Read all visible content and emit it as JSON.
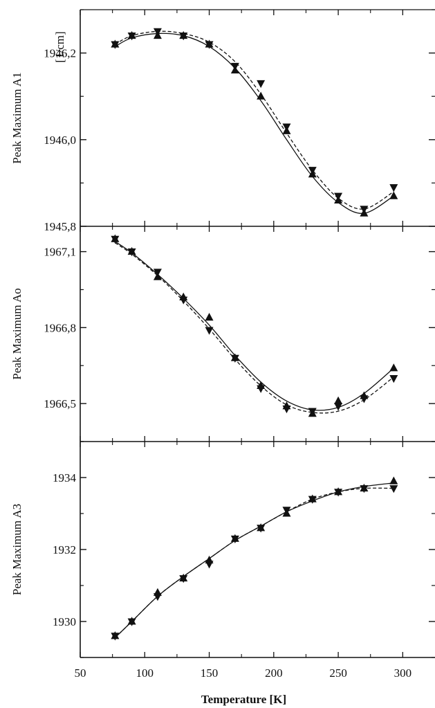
{
  "chart_data": [
    {
      "type": "scatter",
      "ylabel": "Peak Maximum A1",
      "unit_label": "[1/cm]",
      "ylim": [
        1945.8,
        1946.3
      ],
      "yticks": [
        1945.8,
        1946.0,
        1946.2
      ],
      "ytick_labels": [
        "1945,8",
        "1946,0",
        "1946,2"
      ],
      "series": [
        {
          "marker": "up-triangle",
          "line": "solid",
          "x": [
            77,
            90,
            110,
            130,
            150,
            170,
            190,
            210,
            230,
            250,
            270,
            293
          ],
          "y": [
            1946.22,
            1946.24,
            1946.24,
            1946.24,
            1946.22,
            1946.16,
            1946.1,
            1946.02,
            1945.92,
            1945.86,
            1945.83,
            1945.87
          ],
          "fit": [
            1946.215,
            1946.235,
            1946.245,
            1946.24,
            1946.215,
            1946.165,
            1946.09,
            1946.0,
            1945.915,
            1945.855,
            1945.83,
            1945.87
          ]
        },
        {
          "marker": "down-triangle",
          "line": "dashed",
          "x": [
            77,
            90,
            110,
            130,
            150,
            170,
            190,
            210,
            230,
            250,
            270,
            293
          ],
          "y": [
            1946.22,
            1946.24,
            1946.25,
            1946.24,
            1946.22,
            1946.17,
            1946.13,
            1946.03,
            1945.93,
            1945.87,
            1945.84,
            1945.89
          ],
          "fit": [
            1946.22,
            1946.24,
            1946.25,
            1946.245,
            1946.225,
            1946.18,
            1946.105,
            1946.015,
            1945.93,
            1945.865,
            1945.84,
            1945.88
          ]
        }
      ]
    },
    {
      "type": "scatter",
      "ylabel": "Peak Maximum Ao",
      "ylim": [
        1966.35,
        1967.2
      ],
      "yticks": [
        1966.5,
        1966.8,
        1967.1
      ],
      "ytick_labels": [
        "1966,5",
        "1966,8",
        "1967,1"
      ],
      "series": [
        {
          "marker": "up-triangle",
          "line": "solid",
          "x": [
            77,
            90,
            110,
            130,
            150,
            170,
            190,
            210,
            230,
            250,
            270,
            293
          ],
          "y": [
            1967.15,
            1967.1,
            1967.0,
            1966.92,
            1966.84,
            1966.68,
            1966.57,
            1966.49,
            1966.46,
            1966.51,
            1966.53,
            1966.64
          ],
          "fit": [
            1967.14,
            1967.095,
            1967.01,
            1966.915,
            1966.81,
            1966.69,
            1966.585,
            1966.51,
            1966.475,
            1966.485,
            1966.54,
            1966.64
          ]
        },
        {
          "marker": "down-triangle",
          "line": "dashed",
          "x": [
            77,
            90,
            110,
            130,
            150,
            170,
            190,
            210,
            230,
            250,
            270,
            293
          ],
          "y": [
            1967.15,
            1967.1,
            1967.02,
            1966.91,
            1966.79,
            1966.68,
            1966.56,
            1966.48,
            1966.47,
            1966.49,
            1966.52,
            1966.6
          ],
          "fit": [
            1967.135,
            1967.09,
            1967.005,
            1966.905,
            1966.795,
            1966.675,
            1966.57,
            1966.495,
            1966.465,
            1966.47,
            1966.515,
            1966.605
          ]
        }
      ]
    },
    {
      "type": "scatter",
      "ylabel": "Peak Maximum A3",
      "ylim": [
        1929.0,
        1935.0
      ],
      "yticks": [
        1930,
        1932,
        1934
      ],
      "ytick_labels": [
        "1930",
        "1932",
        "1934"
      ],
      "series": [
        {
          "marker": "up-triangle",
          "line": "solid",
          "x": [
            77,
            90,
            110,
            130,
            150,
            170,
            190,
            210,
            230,
            250,
            270,
            293
          ],
          "y": [
            1929.6,
            1930.0,
            1930.8,
            1931.2,
            1931.7,
            1932.3,
            1932.6,
            1933.0,
            1933.4,
            1933.6,
            1933.7,
            1933.9
          ],
          "fit": [
            1929.55,
            1930.0,
            1930.7,
            1931.25,
            1931.75,
            1932.25,
            1932.65,
            1933.05,
            1933.35,
            1933.6,
            1933.75,
            1933.85
          ]
        },
        {
          "marker": "down-triangle",
          "line": "dashed",
          "x": [
            77,
            90,
            110,
            130,
            150,
            170,
            190,
            210,
            230,
            250,
            270,
            293
          ],
          "y": [
            1929.6,
            1930.0,
            1930.7,
            1931.2,
            1931.6,
            1932.3,
            1932.6,
            1933.1,
            1933.4,
            1933.6,
            1933.7,
            1933.7
          ],
          "fit": [
            1929.55,
            1930.0,
            1930.7,
            1931.25,
            1931.75,
            1932.25,
            1932.65,
            1933.05,
            1933.4,
            1933.6,
            1933.7,
            1933.7
          ]
        }
      ]
    }
  ],
  "x_axis": {
    "xlabel": "Temperature [K]",
    "xlim": [
      50,
      325
    ],
    "xticks": [
      50,
      100,
      150,
      200,
      250,
      300
    ],
    "xtick_labels": [
      "50",
      "100",
      "150",
      "200",
      "250",
      "300"
    ]
  },
  "colors": {
    "ink": "#111111",
    "background": "#ffffff"
  }
}
